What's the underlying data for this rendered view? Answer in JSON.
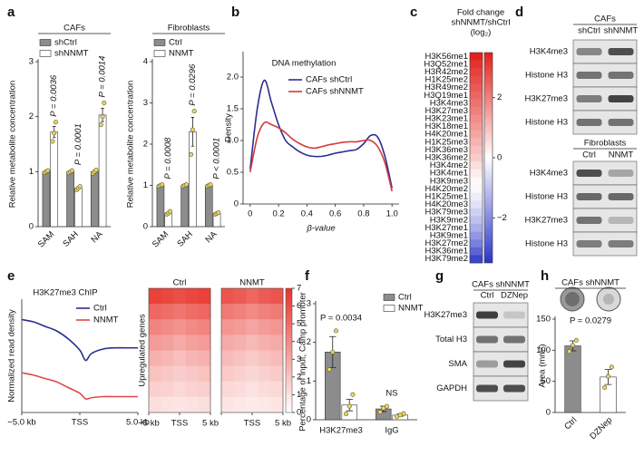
{
  "panels": [
    "a",
    "b",
    "c",
    "d",
    "e",
    "f",
    "g",
    "h"
  ],
  "chart_data": [
    {
      "type": "bar",
      "title": "CAFs",
      "ylabel": "Relative metabolite concentration",
      "categories": [
        "SAM",
        "SAH",
        "NA"
      ],
      "series": [
        {
          "name": "shCtrl",
          "color": "#8c8c8c",
          "values": [
            1,
            1,
            1
          ],
          "errors": [
            0.02,
            0.02,
            0.03
          ],
          "points": [
            [
              0.98,
              1,
              1.02
            ],
            [
              0.98,
              1,
              1.02
            ],
            [
              0.97,
              1,
              1.03
            ]
          ]
        },
        {
          "name": "shNNMT",
          "color": "#ffffff",
          "values": [
            1.72,
            0.7,
            2.03
          ],
          "errors": [
            0.1,
            0.02,
            0.12
          ],
          "points": [
            [
              1.55,
              1.7,
              1.9
            ],
            [
              0.67,
              0.7,
              0.73
            ],
            [
              1.85,
              2.0,
              2.25
            ]
          ]
        }
      ],
      "annotations": [
        "P = 0.0036",
        "P = 0.0001",
        "P = 0.0014"
      ],
      "ylim": [
        0,
        3
      ],
      "yticks": [
        0,
        1,
        2,
        3
      ]
    },
    {
      "type": "bar",
      "title": "Fibroblasts",
      "ylabel": "Relative metabolite concentration",
      "categories": [
        "SAM",
        "SAH",
        "NA"
      ],
      "series": [
        {
          "name": "Ctrl",
          "color": "#8c8c8c",
          "values": [
            1,
            1,
            1
          ],
          "errors": [
            0.02,
            0.02,
            0.02
          ],
          "points": [
            [
              0.98,
              1,
              1.02
            ],
            [
              0.98,
              1,
              1.02
            ],
            [
              0.98,
              1,
              1.02
            ]
          ]
        },
        {
          "name": "NNMT",
          "color": "#ffffff",
          "values": [
            0.33,
            2.3,
            0.32
          ],
          "errors": [
            0.03,
            0.35,
            0.02
          ],
          "points": [
            [
              0.3,
              0.33,
              0.37
            ],
            [
              1.75,
              2.35,
              2.8
            ],
            [
              0.3,
              0.32,
              0.34
            ]
          ]
        }
      ],
      "annotations": [
        "P = 0.0008",
        "P = 0.0296",
        "P < 0.0001"
      ],
      "ylim": [
        0,
        4
      ],
      "yticks": [
        0,
        1,
        2,
        3,
        4
      ]
    },
    {
      "type": "line",
      "title": "DNA methylation",
      "xlabel": "β-value",
      "ylabel": "Density",
      "x": [
        0,
        0.05,
        0.1,
        0.15,
        0.2,
        0.25,
        0.3,
        0.35,
        0.4,
        0.45,
        0.5,
        0.55,
        0.6,
        0.65,
        0.7,
        0.75,
        0.8,
        0.85,
        0.9,
        0.95,
        1.0
      ],
      "series": [
        {
          "name": "CAFs shCtrl",
          "color": "#2b2f8f",
          "values": [
            0.55,
            1.5,
            1.95,
            1.6,
            1.25,
            1.0,
            0.9,
            0.82,
            0.77,
            0.75,
            0.75,
            0.77,
            0.8,
            0.82,
            0.84,
            0.86,
            0.95,
            1.08,
            1.05,
            0.75,
            0.25
          ]
        },
        {
          "name": "CAFs shNNMT",
          "color": "#d43a3a",
          "values": [
            0.5,
            1.05,
            1.28,
            1.25,
            1.2,
            1.12,
            1.02,
            0.95,
            0.9,
            0.88,
            0.9,
            0.93,
            0.95,
            0.97,
            0.98,
            0.98,
            1.0,
            1.0,
            0.9,
            0.65,
            0.2
          ]
        }
      ],
      "xlim": [
        -0.05,
        1.05
      ],
      "xticks": [
        0,
        0.2,
        0.4,
        0.6,
        0.8,
        {
          "value": 1,
          "label": "1.0"
        }
      ],
      "ylim": [
        0,
        2.4
      ],
      "yticks": [
        0,
        0.5,
        {
          "value": 1,
          "label": "1.0"
        },
        1.5,
        {
          "value": 2,
          "label": "2.0"
        }
      ]
    },
    {
      "type": "heatmap",
      "title": [
        "Fold change",
        "shNNMT/shCtrl",
        "(log₂)"
      ],
      "categories": [
        "H3K56me1",
        "H3Q52me1",
        "H3R42me2",
        "H1K25me2",
        "H3R49me2",
        "H3Q19me1",
        "H3K4me3",
        "H3K27me3",
        "H3K23me1",
        "H3K18me1",
        "H4K20me1",
        "H1K25me3",
        "H3K36me3",
        "H3K36me2",
        "H3K4me2",
        "H3K4me1",
        "H3K9me3",
        "H4K20me2",
        "H1K25me1",
        "H4K20me3",
        "H3K79me3",
        "H3K9me2",
        "H3K27me1",
        "H3K9me1",
        "H3K27me2",
        "H3K36me1",
        "H3K79me2"
      ],
      "values": [
        3.5,
        3.2,
        3.0,
        2.8,
        2.6,
        2.4,
        2.2,
        2.0,
        1.8,
        1.6,
        1.4,
        1.2,
        1.0,
        0.8,
        0.5,
        0.3,
        0.1,
        -0.1,
        -0.3,
        -0.5,
        -0.8,
        -1.1,
        -1.4,
        -1.8,
        -2.2,
        -2.7,
        -3.2
      ],
      "highlight_rows": [
        6,
        7
      ],
      "highlight_color": "#e03030",
      "colors": [
        "#2a35c9",
        "#ffffff",
        "#e3211c"
      ],
      "zlim": [
        -3.5,
        3.5
      ],
      "zticks": [
        2,
        0,
        {
          "value": -2,
          "label": "−2"
        }
      ]
    },
    {
      "type": "line",
      "title": "H3K27me3 ChIP",
      "ylabel": "Normalized read density",
      "x": [
        -5,
        -4,
        -3,
        -2,
        -1,
        0,
        0.5,
        1,
        2,
        3,
        4,
        5
      ],
      "series": [
        {
          "name": "Ctrl",
          "color": "#2b2f8f",
          "values": [
            0.82,
            0.8,
            0.76,
            0.72,
            0.65,
            0.55,
            0.46,
            0.52,
            0.56,
            0.57,
            0.57,
            0.57
          ]
        },
        {
          "name": "NNMT",
          "color": "#e04848",
          "values": [
            0.35,
            0.33,
            0.3,
            0.27,
            0.22,
            0.17,
            0.12,
            0.13,
            0.14,
            0.14,
            0.14,
            0.14
          ]
        }
      ],
      "xlim": [
        -5,
        5
      ],
      "xticks": [
        {
          "value": -5,
          "label": "−5.0 kb"
        },
        {
          "value": 0,
          "label": "TSS"
        },
        {
          "value": 5,
          "label": "5.0 kb"
        }
      ],
      "ylim": [
        0,
        1
      ]
    },
    {
      "type": "heatmap2",
      "ylabel": "Upregulated genes",
      "colors": [
        "#ffffff",
        "#e8322a"
      ],
      "panels": [
        {
          "title": "Ctrl",
          "z": [
            [
              6.5,
              6.3,
              6.0,
              6.3,
              6.5
            ],
            [
              5.2,
              5.0,
              4.7,
              5.0,
              5.2
            ],
            [
              4.2,
              4.0,
              3.7,
              4.0,
              4.2
            ],
            [
              3.4,
              3.2,
              2.9,
              3.2,
              3.4
            ],
            [
              2.7,
              2.5,
              2.2,
              2.5,
              2.7
            ],
            [
              2.1,
              1.9,
              1.7,
              1.9,
              2.1
            ],
            [
              1.6,
              1.5,
              1.3,
              1.5,
              1.6
            ],
            [
              1.1,
              1.0,
              0.9,
              1.0,
              1.1
            ]
          ]
        },
        {
          "title": "NNMT",
          "z": [
            [
              5.8,
              5.6,
              5.2,
              5.6,
              5.8
            ],
            [
              4.5,
              4.3,
              4.0,
              4.3,
              4.5
            ],
            [
              3.6,
              3.4,
              3.1,
              3.4,
              3.6
            ],
            [
              2.9,
              2.7,
              2.4,
              2.7,
              2.9
            ],
            [
              2.3,
              2.1,
              1.8,
              2.1,
              2.3
            ],
            [
              1.8,
              1.6,
              1.4,
              1.6,
              1.8
            ],
            [
              1.3,
              1.2,
              1.0,
              1.2,
              1.3
            ],
            [
              0.9,
              0.8,
              0.7,
              0.8,
              0.9
            ]
          ]
        }
      ],
      "xlim": [
        -5,
        5
      ],
      "xticks": [
        {
          "value": -5,
          "label": "−5 kb"
        },
        {
          "value": 0,
          "label": "TSS"
        },
        {
          "value": 5,
          "label": "5 kb"
        }
      ],
      "zlim": [
        0,
        7
      ],
      "zticks": [
        0,
        1,
        2,
        3,
        4,
        5,
        6,
        7
      ]
    },
    {
      "type": "bar",
      "ylabel": "Percentage of input, Camp promoter",
      "categories": [
        "H3K27me3",
        "IgG"
      ],
      "series": [
        {
          "name": "Ctrl",
          "color": "#8c8c8c",
          "values": [
            1.75,
            0.28
          ],
          "errors": [
            0.4,
            0.07
          ],
          "points": [
            [
              1.3,
              1.75,
              2.3
            ],
            [
              0.2,
              0.3,
              0.35
            ]
          ]
        },
        {
          "name": "NNMT",
          "color": "#ffffff",
          "values": [
            0.38,
            0.12
          ],
          "errors": [
            0.15,
            0.03
          ],
          "points": [
            [
              0.15,
              0.35,
              0.65
            ],
            [
              0.08,
              0.12,
              0.16
            ]
          ]
        }
      ],
      "annotations": [
        "P = 0.0034",
        "NS"
      ],
      "ylim": [
        0,
        3
      ],
      "yticks": [
        0,
        1,
        2,
        3
      ]
    },
    {
      "type": "bar",
      "title": "CAFs shNNMT",
      "ylabel": "Area (mm²)",
      "categories": [
        "Ctrl",
        "DZNep"
      ],
      "series": [
        {
          "colors": [
            "#8c8c8c",
            "#ffffff"
          ],
          "values": [
            107,
            57
          ],
          "errors": [
            8,
            12
          ],
          "points": [
            [
              98,
              108,
              116
            ],
            [
              40,
              58,
              73
            ]
          ]
        }
      ],
      "annotations": [
        "P = 0.0279"
      ],
      "ylim": [
        0,
        150
      ],
      "yticks": [
        0,
        50,
        100,
        150
      ]
    }
  ],
  "blots": [
    {
      "groups": [
        {
          "title": "CAFs",
          "lanes": [
            "shCtrl",
            "shNNMT"
          ],
          "rows": [
            "H3K4me3",
            "Histone H3",
            "H3K27me3",
            "Histone H3"
          ]
        },
        {
          "title": "Fibroblasts",
          "lanes": [
            "Ctrl",
            "NNMT"
          ],
          "rows": [
            "H3K4me3",
            "Histone H3",
            "H3K27me3",
            "Histone H3"
          ]
        }
      ]
    },
    {
      "groups": [
        {
          "title": "CAFs shNNMT",
          "lanes": [
            "Ctrl",
            "DZNep"
          ],
          "rows": [
            "H3K27me3",
            "Total H3",
            "SMA",
            "GAPDH"
          ]
        }
      ]
    }
  ]
}
